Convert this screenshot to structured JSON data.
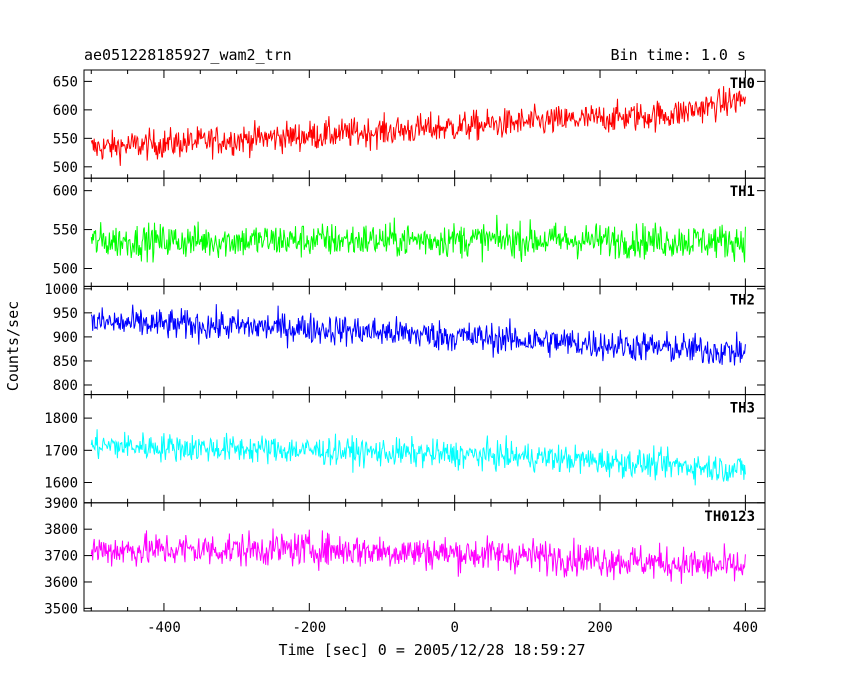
{
  "header": {
    "title": "ae051228185927_wam2_trn",
    "bin_time": "Bin time: 1.0 s"
  },
  "chart_data": {
    "type": "line",
    "xlabel": "Time [sec] 0 = 2005/12/28 18:59:27",
    "ylabel": "Counts/sec",
    "xlim": [
      -510,
      427
    ],
    "x_ticks": [
      -400,
      -200,
      0,
      200,
      400
    ],
    "x_range_data": [
      -500,
      400
    ],
    "panels": [
      {
        "name": "TH0",
        "color": "#ff0000",
        "ylim": [
          480,
          670
        ],
        "yticks": [
          500,
          550,
          600,
          650
        ],
        "trend": [
          {
            "x": -500,
            "y": 533
          },
          {
            "x": -300,
            "y": 548
          },
          {
            "x": -100,
            "y": 562
          },
          {
            "x": 100,
            "y": 578
          },
          {
            "x": 300,
            "y": 592
          },
          {
            "x": 400,
            "y": 620
          }
        ],
        "spread": 45
      },
      {
        "name": "TH1",
        "color": "#00ff00",
        "ylim": [
          477,
          616
        ],
        "yticks": [
          500,
          550,
          600
        ],
        "trend": [
          {
            "x": -500,
            "y": 535
          },
          {
            "x": 0,
            "y": 537
          },
          {
            "x": 400,
            "y": 535
          }
        ],
        "spread": 38
      },
      {
        "name": "TH2",
        "color": "#0000ff",
        "ylim": [
          780,
          1005
        ],
        "yticks": [
          800,
          850,
          900,
          950,
          1000
        ],
        "trend": [
          {
            "x": -500,
            "y": 930
          },
          {
            "x": -200,
            "y": 918
          },
          {
            "x": 100,
            "y": 893
          },
          {
            "x": 400,
            "y": 868
          }
        ],
        "spread": 55
      },
      {
        "name": "TH3",
        "color": "#00ffff",
        "ylim": [
          1537,
          1873
        ],
        "yticks": [
          1600,
          1700,
          1800
        ],
        "trend": [
          {
            "x": -500,
            "y": 1715
          },
          {
            "x": -200,
            "y": 1700
          },
          {
            "x": 100,
            "y": 1680
          },
          {
            "x": 400,
            "y": 1640
          }
        ],
        "spread": 75
      },
      {
        "name": "TH0123",
        "color": "#ff00ff",
        "ylim": [
          3490,
          3900
        ],
        "yticks": [
          3500,
          3600,
          3700,
          3800,
          3900
        ],
        "trend": [
          {
            "x": -500,
            "y": 3720
          },
          {
            "x": -200,
            "y": 3725
          },
          {
            "x": 100,
            "y": 3700
          },
          {
            "x": 400,
            "y": 3655
          }
        ],
        "spread": 110
      }
    ]
  }
}
